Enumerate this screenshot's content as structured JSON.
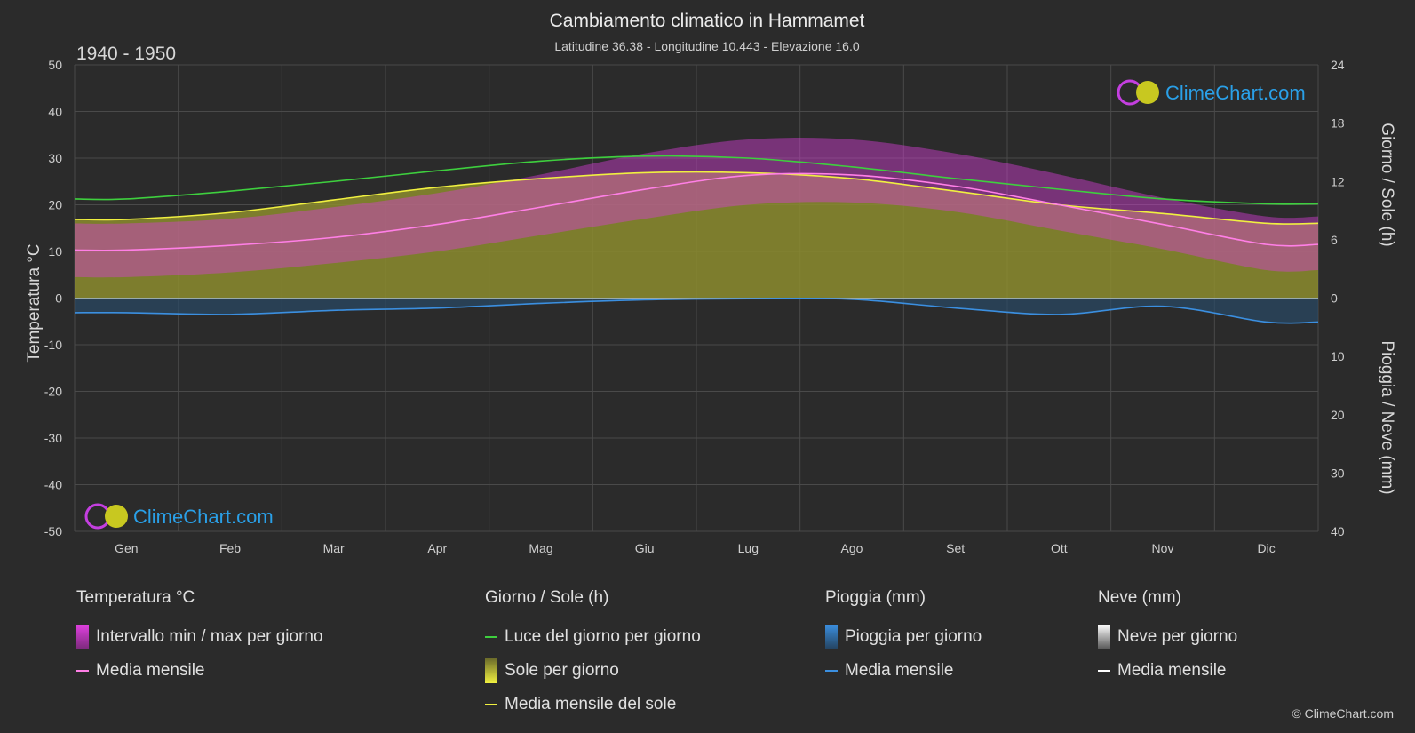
{
  "header": {
    "title": "Cambiamento climatico in Hammamet",
    "subtitle": "Latitudine 36.38 - Longitudine 10.443 - Elevazione 16.0",
    "period": "1940 - 1950"
  },
  "brand": {
    "text": "ClimeChart.com",
    "copyright": "© ClimeChart.com"
  },
  "legend": {
    "temp": {
      "title": "Temperatura °C",
      "range": "Intervallo min / max per giorno",
      "mean": "Media mensile"
    },
    "sun": {
      "title": "Giorno / Sole (h)",
      "daylight": "Luce del giorno per giorno",
      "sunshine": "Sole per giorno",
      "sun_mean": "Media mensile del sole"
    },
    "rain": {
      "title": "Pioggia (mm)",
      "rain_day": "Pioggia per giorno",
      "mean": "Media mensile"
    },
    "snow": {
      "title": "Neve (mm)",
      "snow_day": "Neve per giorno",
      "mean": "Media mensile"
    }
  },
  "colors": {
    "daylight": "#3ecf3e",
    "sun_mean": "#f0f040",
    "sunshine_fill": "#8c8c2e",
    "temp_range": "#d63fd6",
    "temp_mean": "#ff7fe6",
    "rain": "#3b8fe0",
    "rain_fill": "#2a4a66",
    "snow": "#ffffff"
  },
  "chart_data": {
    "type": "area",
    "categories": [
      "Gen",
      "Feb",
      "Mar",
      "Apr",
      "Mag",
      "Giu",
      "Lug",
      "Ago",
      "Set",
      "Ott",
      "Nov",
      "Dic"
    ],
    "axes": {
      "left": {
        "label": "Temperatura °C",
        "min": -50,
        "max": 50,
        "ticks": [
          50,
          40,
          30,
          20,
          10,
          0,
          -10,
          -20,
          -30,
          -40,
          -50
        ]
      },
      "right_top": {
        "label": "Giorno / Sole (h)",
        "min": 0,
        "max": 24,
        "ticks": [
          24,
          18,
          12,
          6,
          0
        ]
      },
      "right_bottom": {
        "label": "Pioggia / Neve (mm)",
        "min": 0,
        "max": 40,
        "ticks": [
          0,
          10,
          20,
          30,
          40
        ]
      }
    },
    "grid": true,
    "series": [
      {
        "name": "Luce del giorno per giorno",
        "unit": "h",
        "values": [
          10.2,
          11.0,
          12.0,
          13.1,
          14.1,
          14.6,
          14.4,
          13.5,
          12.3,
          11.2,
          10.2,
          9.7
        ]
      },
      {
        "name": "Media mensile del sole",
        "unit": "h",
        "values": [
          8.1,
          8.8,
          10.1,
          11.4,
          12.3,
          12.9,
          12.9,
          12.3,
          11.0,
          9.6,
          8.7,
          7.7
        ]
      },
      {
        "name": "Sole per giorno",
        "unit": "h",
        "values": [
          8.1,
          8.8,
          10.1,
          11.4,
          12.3,
          12.9,
          12.9,
          12.3,
          11.0,
          9.6,
          8.7,
          7.7
        ]
      },
      {
        "name": "Media mensile",
        "unit": "°C",
        "values": [
          10.3,
          11.3,
          13.0,
          15.8,
          19.5,
          23.3,
          26.3,
          26.4,
          24.0,
          20.0,
          15.8,
          11.5
        ]
      },
      {
        "name": "Temperatura massima",
        "unit": "°C",
        "values": [
          16.0,
          17.0,
          19.5,
          22.5,
          26.5,
          31.0,
          34.0,
          34.0,
          31.0,
          26.5,
          21.5,
          17.5
        ]
      },
      {
        "name": "Temperatura minima",
        "unit": "°C",
        "values": [
          4.5,
          5.5,
          7.5,
          10.0,
          13.5,
          17.0,
          20.0,
          20.5,
          18.5,
          14.5,
          10.5,
          6.0
        ]
      },
      {
        "name": "Pioggia media mensile",
        "unit": "mm",
        "values": [
          2.5,
          2.8,
          2.1,
          1.7,
          0.9,
          0.3,
          0.1,
          0.2,
          1.7,
          2.8,
          1.4,
          4.1
        ]
      },
      {
        "name": "Neve media mensile",
        "unit": "mm",
        "values": [
          0,
          0,
          0,
          0,
          0,
          0,
          0,
          0,
          0,
          0,
          0,
          0
        ]
      }
    ]
  }
}
